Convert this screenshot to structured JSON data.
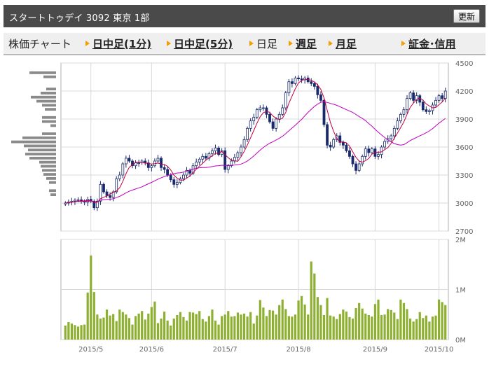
{
  "header": {
    "title": "スタートトゥデイ 3092 東京 1部",
    "refresh_label": "更新"
  },
  "tabs": {
    "label": "株価チャート",
    "intraday_1": "日中足(1分)",
    "intraday_5": "日中足(5分)",
    "daily": "日足",
    "weekly": "週足",
    "monthly": "月足",
    "margin": "証金･信用"
  },
  "colors": {
    "candle_up_outline": "#1a2a6c",
    "candle_down_fill": "#1a2a6c",
    "ma_short": "#c00040",
    "ma_long": "#c000c0",
    "volume_bar": "#8db030",
    "volume_profile": "#8a8a8a",
    "grid": "#d8d8d8",
    "axis_text": "#666666"
  },
  "chart_data": [
    {
      "type": "candlestick",
      "ylim": [
        2700,
        4500
      ],
      "y_ticks": [
        "4500",
        "4200",
        "3900",
        "3600",
        "3300",
        "3000",
        "2700"
      ],
      "x_ticks": [
        "2015/5",
        "2015/6",
        "2015/7",
        "2015/8",
        "2015/9",
        "2015/10"
      ],
      "x_tick_index": [
        8,
        27,
        50,
        73,
        97,
        117
      ],
      "grid": true,
      "close": [
        3000,
        3010,
        3020,
        3030,
        3035,
        3020,
        3010,
        3040,
        3020,
        2950,
        3020,
        3200,
        3120,
        3080,
        3060,
        3120,
        3260,
        3300,
        3420,
        3480,
        3450,
        3400,
        3430,
        3430,
        3450,
        3430,
        3380,
        3400,
        3450,
        3480,
        3380,
        3360,
        3300,
        3250,
        3200,
        3220,
        3260,
        3300,
        3350,
        3320,
        3400,
        3440,
        3470,
        3500,
        3480,
        3530,
        3560,
        3590,
        3520,
        3560,
        3360,
        3400,
        3450,
        3490,
        3540,
        3600,
        3680,
        3800,
        3880,
        3920,
        4000,
        4020,
        4020,
        3950,
        3870,
        3800,
        3900,
        3950,
        4020,
        4180,
        4300,
        4280,
        4340,
        4330,
        4320,
        4340,
        4300,
        4280,
        4250,
        4160,
        4100,
        3840,
        3620,
        3600,
        3680,
        3720,
        3650,
        3620,
        3560,
        3500,
        3420,
        3350,
        3420,
        3500,
        3580,
        3540,
        3580,
        3500,
        3520,
        3600,
        3660,
        3690,
        3720,
        3800,
        3880,
        3950,
        4000,
        4120,
        4180,
        4100,
        4150,
        4080,
        4000,
        3980,
        3990,
        4050,
        4100,
        4150,
        4120,
        4200
      ]
    },
    {
      "type": "bar",
      "series": "volume",
      "ylim": [
        0,
        2000000
      ],
      "y_ticks": [
        "2M",
        "1M",
        "0M"
      ],
      "values": [
        280000,
        350000,
        320000,
        290000,
        260000,
        290000,
        300000,
        940000,
        1680000,
        950000,
        500000,
        420000,
        440000,
        600000,
        480000,
        510000,
        370000,
        600000,
        550000,
        500000,
        430000,
        300000,
        470000,
        520000,
        570000,
        400000,
        520000,
        650000,
        760000,
        330000,
        420000,
        560000,
        380000,
        280000,
        420000,
        490000,
        550000,
        450000,
        380000,
        550000,
        540000,
        510000,
        570000,
        410000,
        360000,
        470000,
        600000,
        380000,
        300000,
        470000,
        500000,
        570000,
        460000,
        470000,
        540000,
        500000,
        520000,
        460000,
        550000,
        320000,
        480000,
        790000,
        640000,
        470000,
        590000,
        580000,
        500000,
        690000,
        800000,
        610000,
        470000,
        460000,
        500000,
        780000,
        870000,
        700000,
        500000,
        1560000,
        1320000,
        850000,
        690000,
        490000,
        830000,
        480000,
        460000,
        410000,
        510000,
        600000,
        560000,
        450000,
        420000,
        630000,
        730000,
        620000,
        520000,
        490000,
        460000,
        710000,
        800000,
        490000,
        500000,
        610000,
        590000,
        540000,
        410000,
        800000,
        730000,
        610000,
        420000,
        360000,
        410000,
        550000,
        430000,
        480000,
        360000,
        460000,
        480000,
        800000,
        750000,
        690000
      ]
    },
    {
      "type": "bar",
      "series": "price_volume_profile",
      "values": [
        38,
        18,
        0,
        0,
        14,
        22,
        36,
        28,
        20,
        16,
        0,
        20,
        20,
        8,
        0,
        20,
        48,
        64,
        46,
        40,
        44,
        38,
        24,
        22,
        20,
        18,
        14,
        10,
        0,
        10,
        8
      ]
    }
  ]
}
